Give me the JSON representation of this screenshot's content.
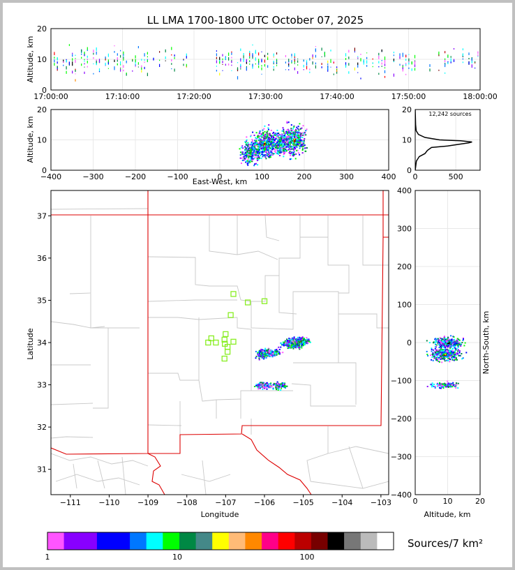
{
  "title": "LL LMA 1700-1800 UTC October 07, 2025",
  "colors": {
    "border": "#c0c0c0",
    "state_lines": "#dd0000",
    "county_lines": "#c8c8c8",
    "stations": "#88ee22"
  },
  "chart_data": [
    {
      "id": "time-height",
      "type": "scatter",
      "ylabel": "Altitude, km",
      "xlabel": "",
      "ylim": [
        0,
        20
      ],
      "yticks": [
        0,
        10,
        20
      ],
      "xticks": [
        "17:00:00",
        "17:10:00",
        "17:20:00",
        "17:30:00",
        "17:40:00",
        "17:50:00",
        "18:00:00"
      ],
      "xlim_minutes": [
        0,
        60
      ],
      "active_intervals_minutes": [
        [
          0,
          19
        ],
        [
          23,
          60
        ]
      ],
      "altitude_core_km": [
        6,
        13
      ]
    },
    {
      "id": "ew-height",
      "type": "scatter",
      "xlabel": "East-West, km",
      "ylabel": "Altitude, km",
      "xlim": [
        -400,
        400
      ],
      "ylim": [
        0,
        20
      ],
      "xticks": [
        -400,
        -300,
        -200,
        -100,
        0,
        100,
        200,
        300,
        400
      ],
      "yticks": [
        0,
        10,
        20
      ],
      "clusters": [
        {
          "x": 105,
          "y": 9,
          "peak": true
        },
        {
          "x": 175,
          "y": 10,
          "peak": true
        },
        {
          "x": 140,
          "y": 9,
          "peak": false
        },
        {
          "x": 70,
          "y": 6,
          "peak": false
        }
      ]
    },
    {
      "id": "altitude-histogram",
      "type": "line",
      "annotation": "12,242 sources",
      "xlim": [
        0,
        800
      ],
      "ylim": [
        0,
        20
      ],
      "xticks": [
        0,
        500
      ],
      "yticks": [
        0,
        10,
        20
      ],
      "points": [
        [
          0,
          0
        ],
        [
          15,
          3
        ],
        [
          50,
          4.5
        ],
        [
          120,
          5.5
        ],
        [
          150,
          6.5
        ],
        [
          200,
          7.5
        ],
        [
          400,
          8
        ],
        [
          550,
          8.6
        ],
        [
          660,
          9
        ],
        [
          700,
          9.3
        ],
        [
          560,
          9.7
        ],
        [
          300,
          10
        ],
        [
          120,
          10.8
        ],
        [
          40,
          11.8
        ],
        [
          12,
          13
        ],
        [
          5,
          15
        ],
        [
          0,
          20
        ]
      ]
    },
    {
      "id": "plan-view",
      "type": "scatter",
      "xlabel": "Longitude",
      "ylabel": "Latitude",
      "xlim": [
        -111.5,
        -102.8
      ],
      "ylim": [
        30.4,
        37.6
      ],
      "xticks": [
        -111,
        -110,
        -109,
        -108,
        -107,
        -106,
        -105,
        -104,
        -103
      ],
      "yticks": [
        31,
        32,
        33,
        34,
        35,
        36,
        37
      ],
      "stations": [
        [
          -106.8,
          35.15
        ],
        [
          -106.43,
          34.95
        ],
        [
          -106.0,
          34.98
        ],
        [
          -106.87,
          34.65
        ],
        [
          -107.0,
          34.2
        ],
        [
          -107.37,
          34.1
        ],
        [
          -107.03,
          34.07
        ],
        [
          -107.45,
          34.0
        ],
        [
          -107.25,
          34.0
        ],
        [
          -107.02,
          33.97
        ],
        [
          -106.8,
          34.02
        ],
        [
          -106.95,
          33.9
        ],
        [
          -106.95,
          33.78
        ],
        [
          -107.03,
          33.62
        ]
      ],
      "clusters": [
        {
          "lon": -105.3,
          "lat": 33.98,
          "peak": true
        },
        {
          "lon": -105.1,
          "lat": 34.05,
          "peak": true
        },
        {
          "lon": -105.9,
          "lat": 33.78,
          "peak": true
        },
        {
          "lon": -106.05,
          "lat": 33.72,
          "peak": false
        },
        {
          "lon": -106.05,
          "lat": 33.0,
          "peak": false
        },
        {
          "lon": -105.65,
          "lat": 33.0,
          "peak": false
        }
      ]
    },
    {
      "id": "ns-height",
      "type": "scatter",
      "xlabel": "Altitude, km",
      "ylabel": "North-South, km",
      "xlim": [
        0,
        20
      ],
      "ylim": [
        -400,
        400
      ],
      "xticks": [
        0,
        10,
        20
      ],
      "yticks": [
        -400,
        -300,
        -200,
        -100,
        0,
        100,
        200,
        300,
        400
      ],
      "clusters": [
        {
          "x": 10,
          "y": 0,
          "peak": true
        },
        {
          "x": 9,
          "y": -30,
          "peak": true
        },
        {
          "x": 9,
          "y": -110,
          "peak": false
        }
      ]
    }
  ],
  "colorbar": {
    "label": "Sources/7 km²",
    "ticks": [
      "1",
      "10",
      "100"
    ],
    "colors": [
      "#ff55ff",
      "#8800ff",
      "#8800ff",
      "#0000ff",
      "#0000ff",
      "#0077ff",
      "#00ffff",
      "#00ff00",
      "#008844",
      "#448888",
      "#ffff00",
      "#ffbb77",
      "#ff8800",
      "#ff0088",
      "#ff0000",
      "#bb0000",
      "#770000",
      "#000000",
      "#777777",
      "#bbbbbb",
      "#ffffff"
    ]
  }
}
